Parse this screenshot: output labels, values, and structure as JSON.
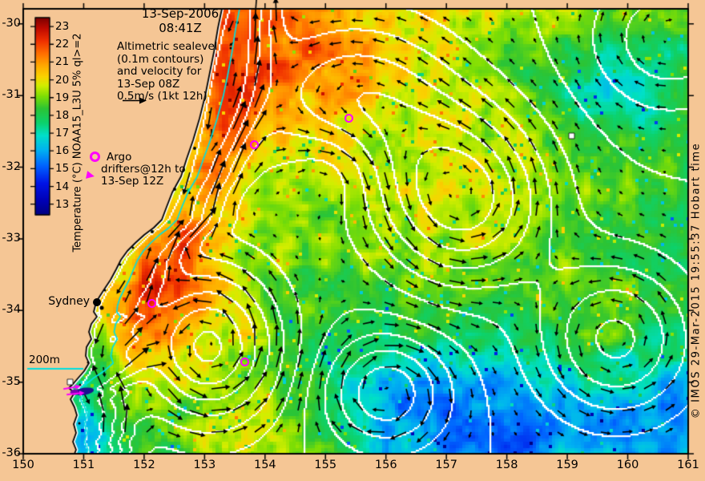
{
  "title": {
    "date": "13-Sep-2006",
    "time": "08:41Z"
  },
  "annotation": {
    "lines": [
      "Altimetric sealevel",
      "(0.1m contours)",
      "and velocity for",
      "13-Sep 08Z",
      "0.5m/s (1kt 12h)"
    ]
  },
  "colorbar": {
    "label": "Temperature (°C) NOAA15_L3U 5% ql>=2",
    "ticks": [
      23,
      22,
      21,
      20,
      19,
      18,
      17,
      16,
      15,
      14,
      13
    ],
    "scale_min": 12.4,
    "scale_max": 23.5,
    "colormap": "jet"
  },
  "legend": {
    "argo": "Argo",
    "drifters_line1": "drifters@12h to",
    "drifters_line2": "13-Sep 12Z"
  },
  "axes": {
    "x_ticks": [
      150,
      151,
      152,
      153,
      154,
      155,
      156,
      157,
      158,
      159,
      160,
      161
    ],
    "y_ticks": [
      -30,
      -31,
      -32,
      -33,
      -34,
      -35,
      -36
    ],
    "lon_range": [
      150,
      161
    ],
    "lat_top": -29.79,
    "lat_bottom": -36.0
  },
  "map": {
    "isobath_label": "200m"
  },
  "markers": {
    "city_marker": {
      "name": "Sydney",
      "lon": 151.22,
      "lat": -33.89
    },
    "argo": [
      {
        "lon": 155.39,
        "lat": -31.32
      },
      {
        "lon": 153.83,
        "lat": -31.69
      },
      {
        "lon": 152.13,
        "lat": -33.9
      },
      {
        "lon": 153.66,
        "lat": -34.72
      }
    ],
    "drifter_cluster": {
      "lon": 150.93,
      "lat": -35.13
    }
  },
  "copyright": "© IMOS 29-Mar-2015 19:55:37 Hobart time",
  "colors": {
    "land": "#f5c695",
    "contour": "#ffffff",
    "isobath": "#00e0e0",
    "marker": "#ff00ff",
    "arrow": "#000000",
    "frame": "#000000"
  }
}
